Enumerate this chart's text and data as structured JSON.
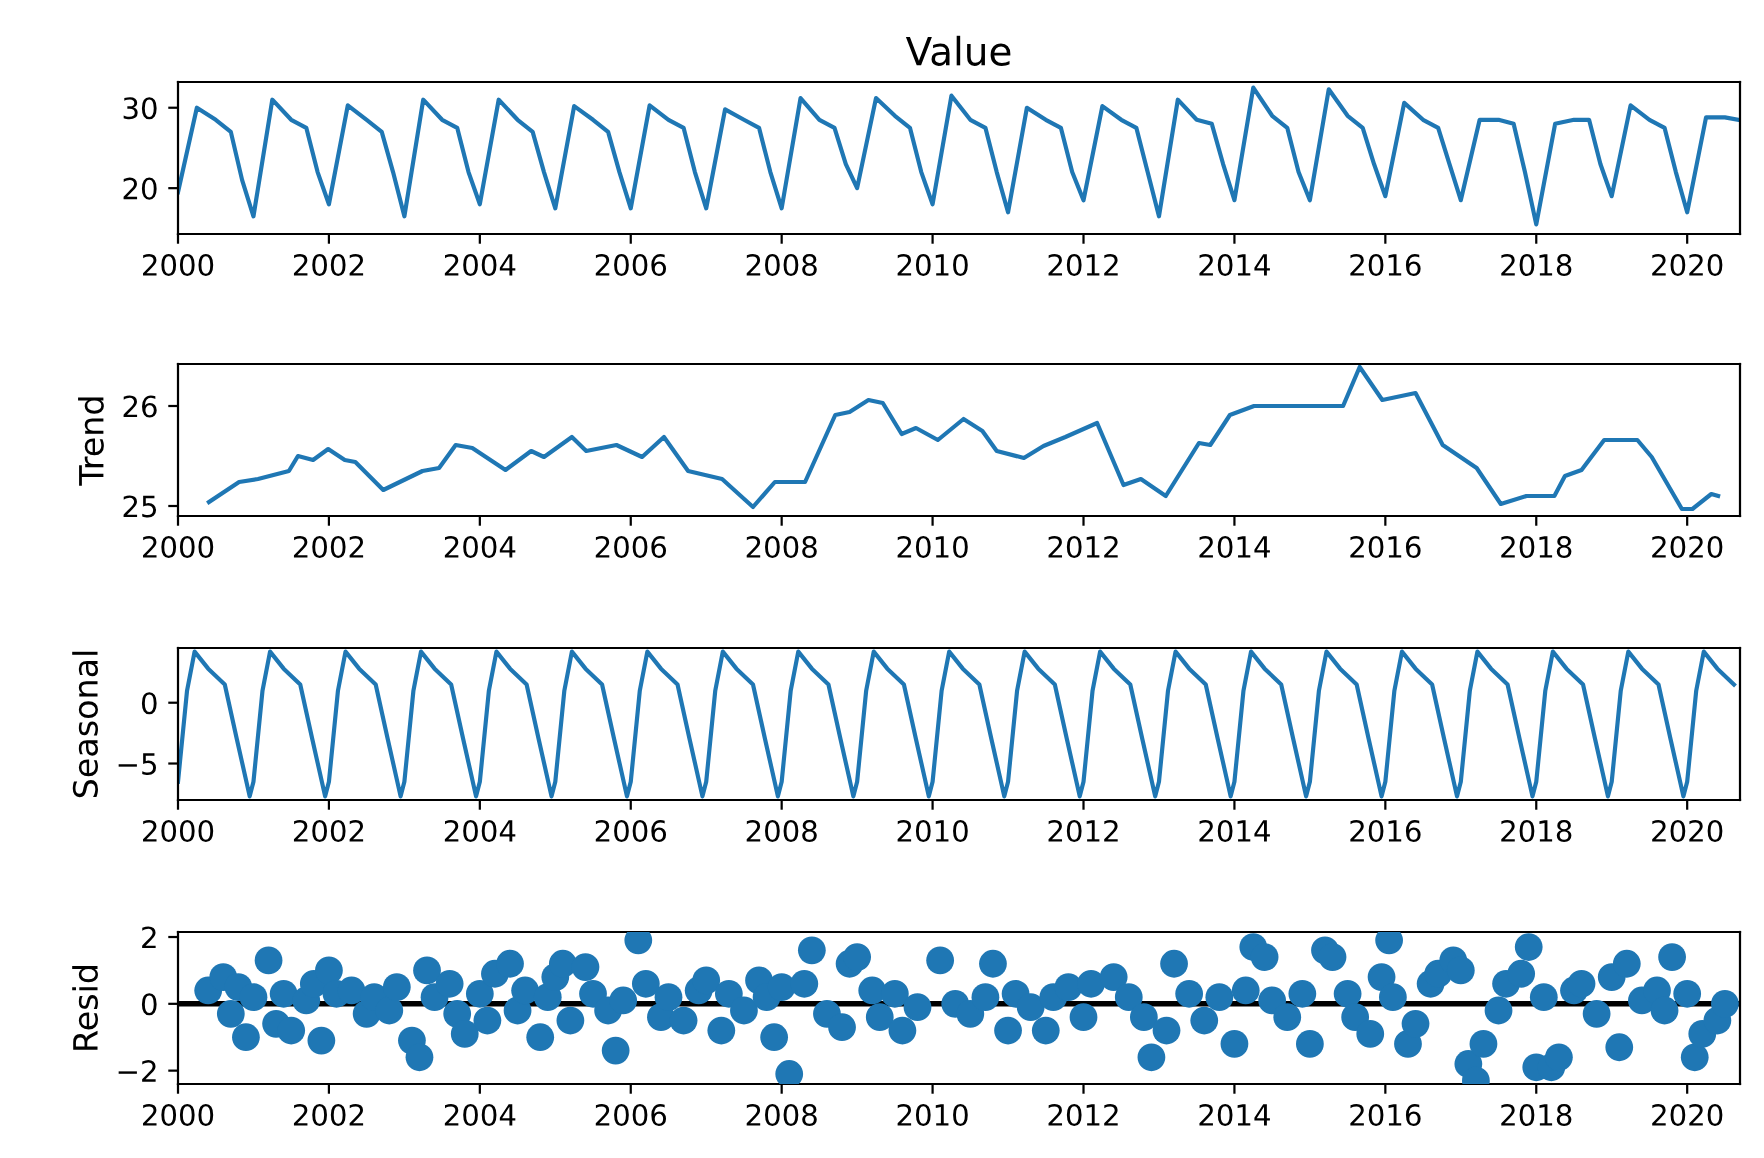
{
  "chart_data": [
    {
      "type": "line",
      "title": "Value",
      "xlim": [
        2000,
        2020.7
      ],
      "xticks": [
        2000,
        2002,
        2004,
        2006,
        2008,
        2010,
        2012,
        2014,
        2016,
        2018,
        2020
      ],
      "ylim": [
        14.3,
        33.2
      ],
      "yticks": [
        20,
        30
      ],
      "marker": "none",
      "line_style": "solid",
      "grid": false,
      "series": [
        {
          "color": "#1f77b4",
          "x": [
            2000,
            2000.25,
            2000.5,
            2000.7,
            2000.85,
            2001,
            2001.25,
            2001.5,
            2001.7,
            2001.85,
            2002,
            2002.25,
            2002.5,
            2002.7,
            2002.85,
            2003,
            2003.25,
            2003.5,
            2003.7,
            2003.85,
            2004,
            2004.25,
            2004.5,
            2004.7,
            2004.85,
            2005,
            2005.25,
            2005.5,
            2005.7,
            2005.85,
            2006,
            2006.25,
            2006.5,
            2006.7,
            2006.85,
            2007,
            2007.25,
            2007.5,
            2007.7,
            2007.85,
            2008,
            2008.25,
            2008.5,
            2008.7,
            2008.85,
            2009,
            2009.25,
            2009.5,
            2009.7,
            2009.85,
            2010,
            2010.25,
            2010.5,
            2010.7,
            2010.85,
            2011,
            2011.25,
            2011.5,
            2011.7,
            2011.85,
            2012,
            2012.25,
            2012.5,
            2012.7,
            2012.85,
            2013,
            2013.25,
            2013.5,
            2013.7,
            2013.85,
            2014,
            2014.25,
            2014.5,
            2014.7,
            2014.85,
            2015,
            2015.25,
            2015.5,
            2015.7,
            2015.85,
            2016,
            2016.25,
            2016.5,
            2016.7,
            2016.85,
            2017,
            2017.25,
            2017.5,
            2017.7,
            2017.85,
            2018,
            2018.25,
            2018.5,
            2018.7,
            2018.85,
            2019,
            2019.25,
            2019.5,
            2019.7,
            2019.85,
            2020,
            2020.25,
            2020.5,
            2020.68
          ],
          "values": [
            19.5,
            30,
            28.5,
            27,
            21,
            16.5,
            31,
            28.5,
            27.5,
            22,
            18,
            30.3,
            28.5,
            27,
            22,
            16.5,
            31,
            28.5,
            27.5,
            22,
            18,
            31,
            28.5,
            27,
            22,
            17.5,
            30.2,
            28.5,
            27,
            22,
            17.5,
            30.3,
            28.5,
            27.5,
            22,
            17.5,
            29.8,
            28.5,
            27.5,
            22,
            17.5,
            31.2,
            28.5,
            27.5,
            23,
            20,
            31.2,
            29,
            27.5,
            22,
            18,
            31.5,
            28.5,
            27.5,
            22,
            17,
            30,
            28.5,
            27.5,
            22,
            18.5,
            30.2,
            28.5,
            27.5,
            22,
            16.5,
            31,
            28.5,
            28,
            23,
            18.5,
            32.5,
            29,
            27.5,
            22,
            18.5,
            32.3,
            29,
            27.5,
            23,
            19,
            30.6,
            28.5,
            27.5,
            23,
            18.5,
            28.5,
            28.5,
            28,
            22,
            15.5,
            28,
            28.5,
            28.5,
            23,
            19,
            30.3,
            28.5,
            27.5,
            22,
            17,
            28.8,
            28.8,
            28.5
          ]
        }
      ]
    },
    {
      "type": "line",
      "ylabel": "Trend",
      "xlim": [
        2000,
        2020.7
      ],
      "xticks": [
        2000,
        2002,
        2004,
        2006,
        2008,
        2010,
        2012,
        2014,
        2016,
        2018,
        2020
      ],
      "ylim": [
        24.9,
        26.42
      ],
      "yticks": [
        25,
        26
      ],
      "marker": "none",
      "line_style": "solid",
      "grid": false,
      "series": [
        {
          "color": "#1f77b4",
          "x": [
            2000.41,
            2000.81,
            2001.06,
            2001.47,
            2001.59,
            2001.79,
            2001.99,
            2002.21,
            2002.35,
            2002.72,
            2003.24,
            2003.46,
            2003.68,
            2003.9,
            2004.34,
            2004.68,
            2004.85,
            2005.22,
            2005.41,
            2005.81,
            2006.15,
            2006.44,
            2006.76,
            2007.21,
            2007.62,
            2007.91,
            2008.31,
            2008.71,
            2008.9,
            2009.15,
            2009.34,
            2009.59,
            2009.78,
            2010.07,
            2010.41,
            2010.66,
            2010.85,
            2011.21,
            2011.47,
            2011.76,
            2012.18,
            2012.53,
            2012.76,
            2013.09,
            2013.53,
            2013.68,
            2013.94,
            2014.26,
            2015.29,
            2015.44,
            2015.66,
            2015.96,
            2016.4,
            2016.76,
            2017.21,
            2017.53,
            2017.87,
            2018.24,
            2018.38,
            2018.6,
            2018.9,
            2019.34,
            2019.53,
            2019.93,
            2020.07,
            2020.32,
            2020.41
          ],
          "values": [
            25.04,
            25.24,
            25.27,
            25.35,
            25.5,
            25.46,
            25.57,
            25.46,
            25.44,
            25.16,
            25.35,
            25.38,
            25.61,
            25.58,
            25.36,
            25.55,
            25.49,
            25.69,
            25.55,
            25.61,
            25.49,
            25.69,
            25.35,
            25.27,
            24.99,
            25.24,
            25.24,
            25.91,
            25.94,
            26.06,
            26.03,
            25.72,
            25.78,
            25.66,
            25.87,
            25.75,
            25.55,
            25.48,
            25.6,
            25.69,
            25.83,
            25.21,
            25.27,
            25.1,
            25.63,
            25.61,
            25.91,
            26.0,
            26.0,
            26.0,
            26.39,
            26.06,
            26.13,
            25.61,
            25.38,
            25.02,
            25.1,
            25.1,
            25.3,
            25.36,
            25.66,
            25.66,
            25.49,
            24.97,
            24.97,
            25.12,
            25.1
          ]
        }
      ]
    },
    {
      "type": "line",
      "ylabel": "Seasonal",
      "xlim": [
        2000,
        2020.7
      ],
      "xticks": [
        2000,
        2002,
        2004,
        2006,
        2008,
        2010,
        2012,
        2014,
        2016,
        2018,
        2020
      ],
      "ylim": [
        -8,
        4.5
      ],
      "yticks": [
        {
          "value": -5,
          "label": "−5"
        },
        0
      ],
      "marker": "none",
      "line_style": "solid",
      "grid": false,
      "series": [
        {
          "color": "#1f77b4",
          "x": [
            2000,
            2000.12,
            2000.22,
            2000.4,
            2000.62,
            2000.78,
            2000.95,
            2001,
            2001.12,
            2001.22,
            2001.4,
            2001.62,
            2001.78,
            2001.95,
            2002,
            2002.12,
            2002.22,
            2002.4,
            2002.62,
            2002.78,
            2002.95,
            2003,
            2003.12,
            2003.22,
            2003.4,
            2003.62,
            2003.78,
            2003.95,
            2004,
            2004.12,
            2004.22,
            2004.4,
            2004.62,
            2004.78,
            2004.95,
            2005,
            2005.12,
            2005.22,
            2005.4,
            2005.62,
            2005.78,
            2005.95,
            2006,
            2006.12,
            2006.22,
            2006.4,
            2006.62,
            2006.78,
            2006.95,
            2007,
            2007.12,
            2007.22,
            2007.4,
            2007.62,
            2007.78,
            2007.95,
            2008,
            2008.12,
            2008.22,
            2008.4,
            2008.62,
            2008.78,
            2008.95,
            2009,
            2009.12,
            2009.22,
            2009.4,
            2009.62,
            2009.78,
            2009.95,
            2010,
            2010.12,
            2010.22,
            2010.4,
            2010.62,
            2010.78,
            2010.95,
            2011,
            2011.12,
            2011.22,
            2011.4,
            2011.62,
            2011.78,
            2011.95,
            2012,
            2012.12,
            2012.22,
            2012.4,
            2012.62,
            2012.78,
            2012.95,
            2013,
            2013.12,
            2013.22,
            2013.4,
            2013.62,
            2013.78,
            2013.95,
            2014,
            2014.12,
            2014.22,
            2014.4,
            2014.62,
            2014.78,
            2014.95,
            2015,
            2015.12,
            2015.22,
            2015.4,
            2015.62,
            2015.78,
            2015.95,
            2016,
            2016.12,
            2016.22,
            2016.4,
            2016.62,
            2016.78,
            2016.95,
            2017,
            2017.12,
            2017.22,
            2017.4,
            2017.62,
            2017.78,
            2017.95,
            2018,
            2018.12,
            2018.22,
            2018.4,
            2018.62,
            2018.78,
            2018.95,
            2019,
            2019.12,
            2019.22,
            2019.4,
            2019.62,
            2019.78,
            2019.95,
            2020,
            2020.12,
            2020.22,
            2020.4,
            2020.62
          ],
          "values": [
            -6.5,
            1,
            4.2,
            2.8,
            1.5,
            -3,
            -7.7,
            -6.5,
            1,
            4.2,
            2.8,
            1.5,
            -3,
            -7.7,
            -6.5,
            1,
            4.2,
            2.8,
            1.5,
            -3,
            -7.7,
            -6.5,
            1,
            4.2,
            2.8,
            1.5,
            -3,
            -7.7,
            -6.5,
            1,
            4.2,
            2.8,
            1.5,
            -3,
            -7.7,
            -6.5,
            1,
            4.2,
            2.8,
            1.5,
            -3,
            -7.7,
            -6.5,
            1,
            4.2,
            2.8,
            1.5,
            -3,
            -7.7,
            -6.5,
            1,
            4.2,
            2.8,
            1.5,
            -3,
            -7.7,
            -6.5,
            1,
            4.2,
            2.8,
            1.5,
            -3,
            -7.7,
            -6.5,
            1,
            4.2,
            2.8,
            1.5,
            -3,
            -7.7,
            -6.5,
            1,
            4.2,
            2.8,
            1.5,
            -3,
            -7.7,
            -6.5,
            1,
            4.2,
            2.8,
            1.5,
            -3,
            -7.7,
            -6.5,
            1,
            4.2,
            2.8,
            1.5,
            -3,
            -7.7,
            -6.5,
            1,
            4.2,
            2.8,
            1.5,
            -3,
            -7.7,
            -6.5,
            1,
            4.2,
            2.8,
            1.5,
            -3,
            -7.7,
            -6.5,
            1,
            4.2,
            2.8,
            1.5,
            -3,
            -7.7,
            -6.5,
            1,
            4.2,
            2.8,
            1.5,
            -3,
            -7.7,
            -6.5,
            1,
            4.2,
            2.8,
            1.5,
            -3,
            -7.7,
            -6.5,
            1,
            4.2,
            2.8,
            1.5,
            -3,
            -7.7,
            -6.5,
            1,
            4.2,
            2.8,
            1.5,
            -3,
            -7.7,
            -6.5,
            1,
            4.2,
            2.8,
            1.5
          ]
        }
      ]
    },
    {
      "type": "scatter",
      "ylabel": "Resid",
      "xlim": [
        2000,
        2020.7
      ],
      "xticks": [
        2000,
        2002,
        2004,
        2006,
        2008,
        2010,
        2012,
        2014,
        2016,
        2018,
        2020
      ],
      "ylim": [
        -2.4,
        2.15
      ],
      "yticks": [
        {
          "value": -2,
          "label": "−2"
        },
        0,
        2
      ],
      "marker": "circle",
      "grid": false,
      "ref_lines": [
        {
          "axis": "y",
          "value": 0,
          "color": "#000000"
        }
      ],
      "series": [
        {
          "color": "#1f77b4",
          "x": [
            2000.4,
            2000.6,
            2000.7,
            2000.8,
            2000.9,
            2001.0,
            2001.2,
            2001.3,
            2001.4,
            2001.5,
            2001.7,
            2001.8,
            2001.9,
            2002.0,
            2002.1,
            2002.3,
            2002.5,
            2002.6,
            2002.8,
            2002.9,
            2003.1,
            2003.2,
            2003.3,
            2003.4,
            2003.6,
            2003.7,
            2003.8,
            2004.0,
            2004.1,
            2004.2,
            2004.4,
            2004.5,
            2004.6,
            2004.8,
            2004.9,
            2005.0,
            2005.1,
            2005.2,
            2005.4,
            2005.5,
            2005.7,
            2005.8,
            2005.9,
            2006.1,
            2006.2,
            2006.4,
            2006.5,
            2006.7,
            2006.9,
            2007.0,
            2007.2,
            2007.3,
            2007.5,
            2007.7,
            2007.8,
            2007.9,
            2008.0,
            2008.1,
            2008.3,
            2008.4,
            2008.6,
            2008.8,
            2008.9,
            2009.0,
            2009.2,
            2009.3,
            2009.5,
            2009.6,
            2009.8,
            2010.1,
            2010.3,
            2010.5,
            2010.7,
            2010.8,
            2011.0,
            2011.1,
            2011.3,
            2011.5,
            2011.6,
            2011.8,
            2012.0,
            2012.1,
            2012.4,
            2012.6,
            2012.8,
            2012.9,
            2013.1,
            2013.2,
            2013.4,
            2013.6,
            2013.8,
            2014.0,
            2014.15,
            2014.25,
            2014.4,
            2014.5,
            2014.7,
            2014.9,
            2015.0,
            2015.2,
            2015.3,
            2015.5,
            2015.6,
            2015.8,
            2015.95,
            2016.05,
            2016.1,
            2016.3,
            2016.4,
            2016.6,
            2016.7,
            2016.9,
            2017.0,
            2017.1,
            2017.2,
            2017.3,
            2017.5,
            2017.6,
            2017.8,
            2017.9,
            2018.0,
            2018.1,
            2018.2,
            2018.3,
            2018.5,
            2018.6,
            2018.8,
            2019.0,
            2019.1,
            2019.2,
            2019.4,
            2019.6,
            2019.7,
            2019.8,
            2020.0,
            2020.1,
            2020.2,
            2020.4,
            2020.5
          ],
          "values": [
            0.4,
            0.8,
            -0.3,
            0.5,
            -1,
            0.2,
            1.3,
            -0.6,
            0.3,
            -0.8,
            0.1,
            0.6,
            -1.1,
            1.0,
            0.3,
            0.4,
            -0.3,
            0.2,
            -0.2,
            0.5,
            -1.1,
            -1.6,
            1.0,
            0.2,
            0.6,
            -0.3,
            -0.9,
            0.3,
            -0.5,
            0.9,
            1.2,
            -0.2,
            0.4,
            -1.0,
            0.2,
            0.8,
            1.2,
            -0.5,
            1.1,
            0.3,
            -0.2,
            -1.4,
            0.1,
            1.9,
            0.6,
            -0.4,
            0.2,
            -0.5,
            0.4,
            0.7,
            -0.8,
            0.3,
            -0.2,
            0.7,
            0.2,
            -1.0,
            0.5,
            -2.1,
            0.6,
            1.6,
            -0.3,
            -0.7,
            1.2,
            1.4,
            0.4,
            -0.4,
            0.3,
            -0.8,
            -0.1,
            1.3,
            0.0,
            -0.3,
            0.2,
            1.2,
            -0.8,
            0.3,
            -0.1,
            -0.8,
            0.2,
            0.5,
            -0.4,
            0.6,
            0.8,
            0.2,
            -0.4,
            -1.6,
            -0.8,
            1.2,
            0.3,
            -0.5,
            0.2,
            -1.2,
            0.4,
            1.7,
            1.4,
            0.1,
            -0.4,
            0.3,
            -1.2,
            1.6,
            1.4,
            0.3,
            -0.4,
            -0.9,
            0.8,
            1.9,
            0.2,
            -1.2,
            -0.6,
            0.6,
            0.9,
            1.3,
            1.0,
            -1.8,
            -2.3,
            -1.2,
            -0.2,
            0.6,
            0.9,
            1.7,
            -1.9,
            0.2,
            -1.9,
            -1.6,
            0.4,
            0.6,
            -0.3,
            0.8,
            -1.3,
            1.2,
            0.1,
            0.4,
            -0.2,
            1.4,
            0.3,
            -1.6,
            -0.9,
            -0.5,
            0.0
          ]
        }
      ]
    }
  ]
}
